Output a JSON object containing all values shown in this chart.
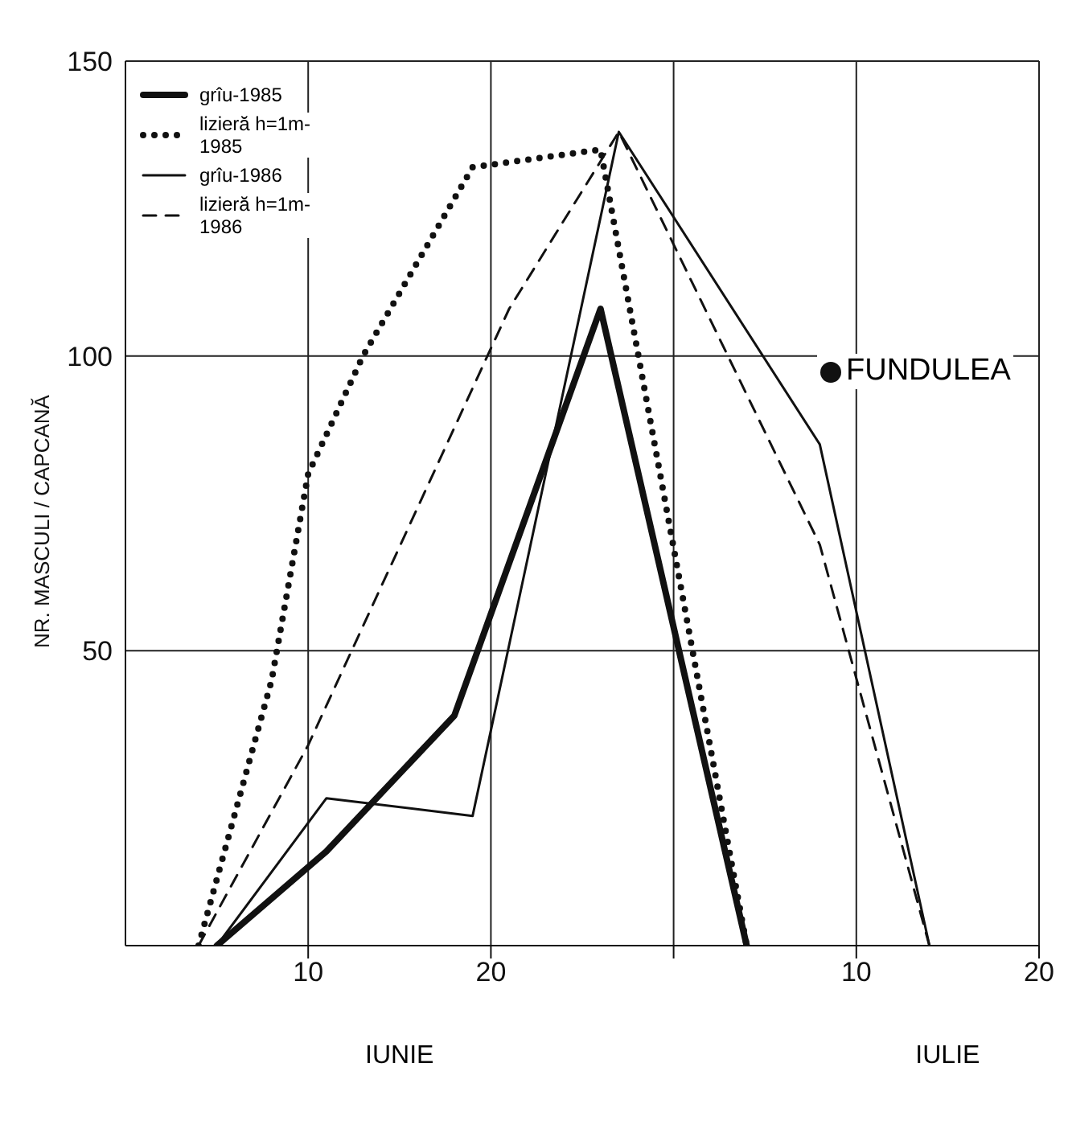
{
  "chart_data": {
    "type": "line",
    "ylabel": "NR. MASCULI / CAPCANĂ",
    "xlim": [
      "--05-31",
      "--07-20"
    ],
    "xticks": [
      {
        "value": "--06-10",
        "label": "10"
      },
      {
        "value": "--06-20",
        "label": "20"
      },
      {
        "value": "--06-30",
        "label": null
      },
      {
        "value": "--07-10",
        "label": "10"
      },
      {
        "value": "--07-20",
        "label": "20"
      }
    ],
    "ylim": [
      0,
      150
    ],
    "yticks": [
      50,
      100,
      150
    ],
    "grid": true,
    "legend": "top left",
    "marker": "none",
    "annotations": [
      "IUNIE",
      "IULIE",
      "FUNDULEA"
    ],
    "series": [
      {
        "name": "grîu-1985",
        "color": "#111111",
        "line_style": "solid",
        "x": [
          "--06-05",
          "--06-11",
          "--06-18",
          "--06-26",
          "--07-04"
        ],
        "values": [
          0,
          16,
          39,
          108,
          0
        ]
      },
      {
        "name": "lizieră h=1m-1985",
        "color": "#111111",
        "line_style": "dotted",
        "x": [
          "--06-04",
          "--06-08",
          "--06-10",
          "--06-13",
          "--06-19",
          "--06-26",
          "--07-04"
        ],
        "values": [
          0,
          45,
          80,
          100,
          132,
          135,
          0
        ]
      },
      {
        "name": "grîu-1986",
        "color": "#111111",
        "line_style": "solid",
        "x": [
          "--06-05",
          "--06-11",
          "--06-19",
          "--06-27",
          "--07-08",
          "--07-14"
        ],
        "values": [
          0,
          25,
          22,
          138,
          85,
          0
        ]
      },
      {
        "name": "lizieră h=1m-1986",
        "color": "#111111",
        "line_style": "dashed",
        "x": [
          "--06-04",
          "--06-10",
          "--06-21",
          "--06-27",
          "--07-08",
          "--07-14"
        ],
        "values": [
          0,
          34,
          108,
          138,
          68,
          0
        ]
      }
    ]
  }
}
